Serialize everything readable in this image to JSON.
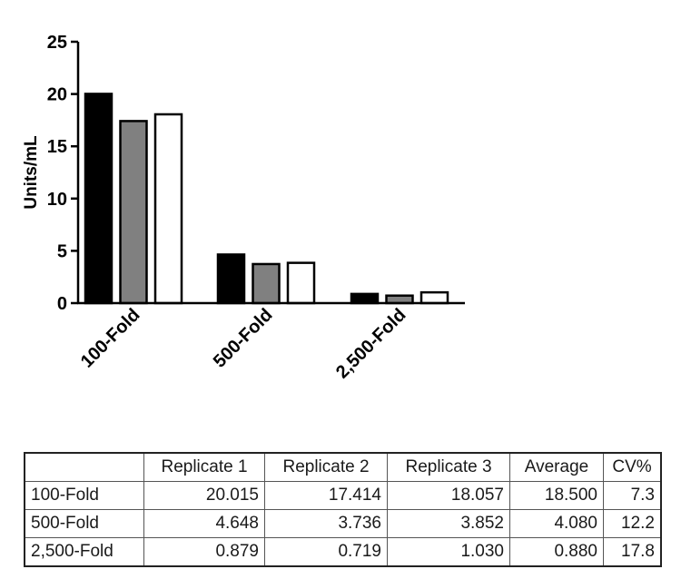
{
  "chart_data": {
    "type": "bar",
    "ylabel": "Units/mL",
    "ylim": [
      0,
      25
    ],
    "yticks": [
      0,
      5,
      10,
      15,
      20,
      25
    ],
    "categories": [
      "100-Fold",
      "500-Fold",
      "2,500-Fold"
    ],
    "series": [
      {
        "values": [
          20.015,
          4.648,
          0.879
        ],
        "color": "#000000"
      },
      {
        "values": [
          17.414,
          3.736,
          0.719
        ],
        "color": "#808080"
      },
      {
        "values": [
          18.057,
          3.852,
          1.03
        ],
        "color": "#ffffff"
      }
    ],
    "grid": false,
    "legend": "none"
  },
  "table": {
    "headers": [
      "",
      "Replicate 1",
      "Replicate 2",
      "Replicate 3",
      "Average",
      "CV%"
    ],
    "rows": [
      [
        "100-Fold",
        "20.015",
        "17.414",
        "18.057",
        "18.500",
        "7.3"
      ],
      [
        "500-Fold",
        "4.648",
        "3.736",
        "3.852",
        "4.080",
        "12.2"
      ],
      [
        "2,500-Fold",
        "0.879",
        "0.719",
        "1.030",
        "0.880",
        "17.8"
      ]
    ]
  }
}
